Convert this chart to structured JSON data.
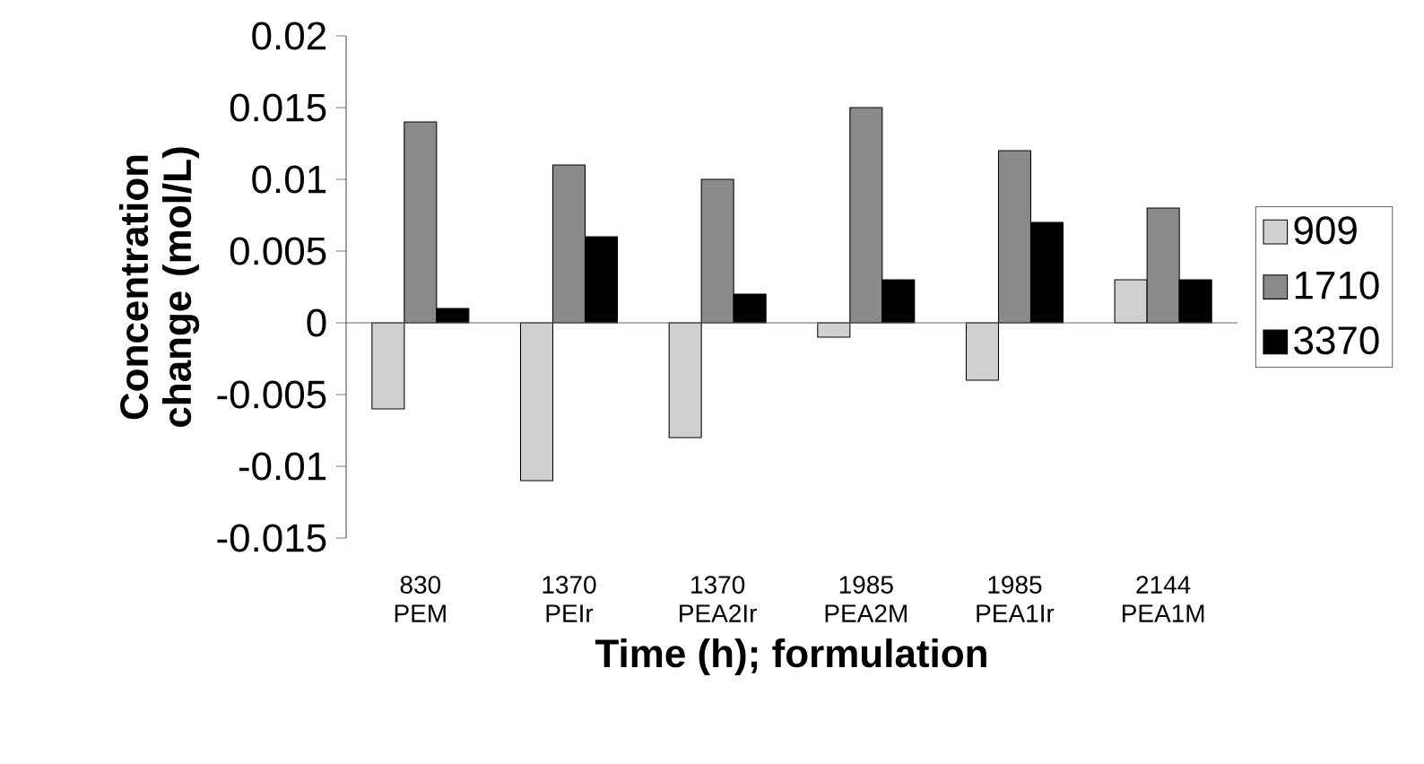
{
  "chart_data": {
    "type": "bar",
    "xlabel": "Time (h); formulation",
    "ylabel": "Concentration change (mol/L)",
    "categories": [
      "830 PEM",
      "1370 PEIr",
      "1370 PEA2Ir",
      "1985 PEA2M",
      "1985 PEA1Ir",
      "2144 PEA1M"
    ],
    "series": [
      {
        "name": "909",
        "color": "#d0d0d0",
        "values": [
          -0.006,
          -0.011,
          -0.008,
          -0.001,
          -0.004,
          0.003
        ]
      },
      {
        "name": "1710",
        "color": "#8a8a8a",
        "values": [
          0.014,
          0.011,
          0.01,
          0.015,
          0.012,
          0.008
        ]
      },
      {
        "name": "3370",
        "color": "#000000",
        "values": [
          0.001,
          0.006,
          0.002,
          0.003,
          0.007,
          0.003
        ]
      }
    ],
    "ylim": [
      -0.015,
      0.02
    ],
    "yticks": [
      -0.015,
      -0.01,
      -0.005,
      0,
      0.005,
      0.01,
      0.015,
      0.02
    ],
    "legend": "right"
  }
}
